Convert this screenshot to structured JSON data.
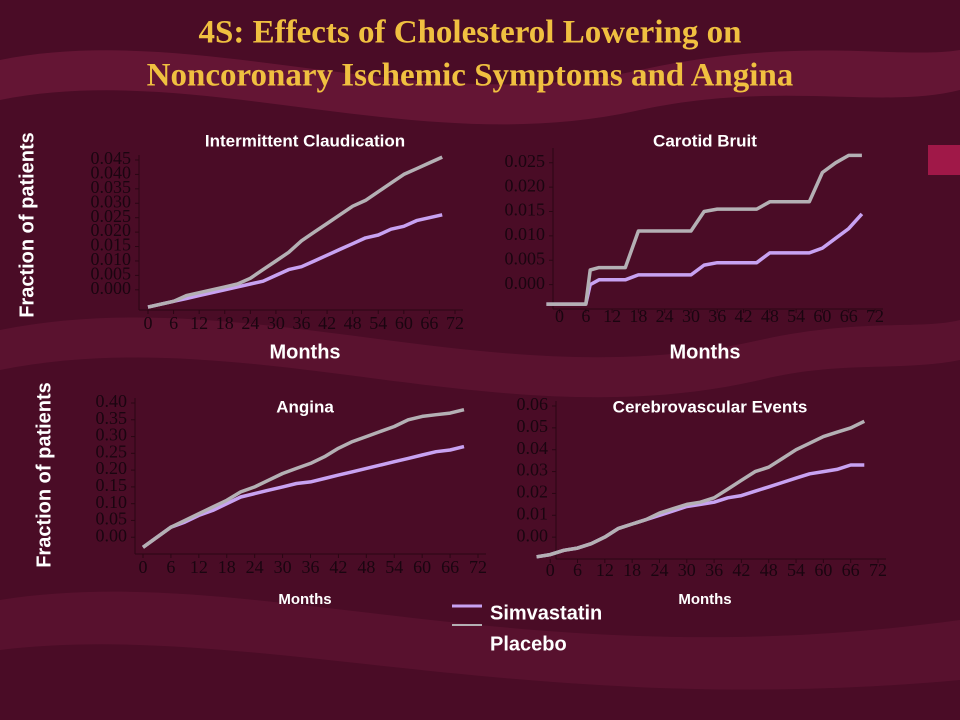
{
  "title": [
    "4S: Effects of Cholesterol Lowering on",
    "Noncoronary Ischemic Symptoms and Angina"
  ],
  "chart_data": [
    {
      "type": "line",
      "title": "Intermittent Claudication",
      "xlabel": "Months",
      "ylabel": "Fraction of patients",
      "x": [
        0,
        3,
        6,
        9,
        12,
        15,
        18,
        21,
        24,
        27,
        30,
        33,
        36,
        39,
        42,
        45,
        48,
        51,
        54,
        57,
        60,
        63,
        66,
        69
      ],
      "series": [
        {
          "name": "Simvastatin",
          "color": "#c8a2f2",
          "values": [
            -0.006,
            -0.005,
            -0.004,
            -0.003,
            -0.002,
            -0.001,
            0.0,
            0.001,
            0.002,
            0.003,
            0.005,
            0.007,
            0.008,
            0.01,
            0.012,
            0.014,
            0.016,
            0.018,
            0.019,
            0.021,
            0.022,
            0.024,
            0.025,
            0.026
          ]
        },
        {
          "name": "Placebo",
          "color": "#b4b0b4",
          "values": [
            -0.006,
            -0.005,
            -0.004,
            -0.002,
            -0.001,
            0.0,
            0.001,
            0.002,
            0.004,
            0.007,
            0.01,
            0.013,
            0.017,
            0.02,
            0.023,
            0.026,
            0.029,
            0.031,
            0.034,
            0.037,
            0.04,
            0.042,
            0.044,
            0.046
          ]
        }
      ],
      "xlim": [
        0,
        72
      ],
      "xticks": [
        0,
        6,
        12,
        18,
        24,
        30,
        36,
        42,
        48,
        54,
        60,
        66,
        72
      ],
      "ylim": [
        -0.007,
        0.045
      ],
      "yticks": [
        {
          "value": 0,
          "label": "0.000"
        },
        {
          "value": 0.005,
          "label": "0.005"
        },
        {
          "value": 0.01,
          "label": "0.010"
        },
        {
          "value": 0.015,
          "label": "0.015"
        },
        {
          "value": 0.02,
          "label": "0.020"
        },
        {
          "value": 0.025,
          "label": "0.025"
        },
        {
          "value": 0.03,
          "label": "0.030"
        },
        {
          "value": 0.035,
          "label": "0.035"
        },
        {
          "value": 0.04,
          "label": "0.040"
        },
        {
          "value": 0.045,
          "label": "0.045"
        }
      ]
    },
    {
      "type": "line",
      "title": "Carotid Bruit",
      "xlabel": "Months",
      "x": [
        -3,
        0,
        3,
        6,
        7,
        9,
        12,
        15,
        18,
        21,
        24,
        27,
        30,
        33,
        36,
        39,
        42,
        45,
        48,
        51,
        54,
        57,
        60,
        63,
        66,
        69
      ],
      "series": [
        {
          "color": "#c8a2f2",
          "values": [
            -0.004,
            -0.004,
            -0.004,
            -0.004,
            0.0,
            0.001,
            0.001,
            0.001,
            0.002,
            0.002,
            0.002,
            0.002,
            0.002,
            0.004,
            0.0045,
            0.0045,
            0.0045,
            0.0045,
            0.0065,
            0.0065,
            0.0065,
            0.0065,
            0.0075,
            0.0095,
            0.0115,
            0.0145
          ]
        },
        {
          "color": "#b4b0b4",
          "values": [
            -0.004,
            -0.004,
            -0.004,
            -0.004,
            0.003,
            0.0035,
            0.0035,
            0.0035,
            0.011,
            0.011,
            0.011,
            0.011,
            0.011,
            0.015,
            0.0155,
            0.0155,
            0.0155,
            0.0155,
            0.017,
            0.017,
            0.017,
            0.017,
            0.023,
            0.025,
            0.0265,
            0.0265
          ]
        }
      ],
      "xlim": [
        -4,
        72
      ],
      "xticks": [
        0,
        6,
        12,
        18,
        24,
        30,
        36,
        42,
        48,
        54,
        60,
        66,
        72
      ],
      "ylim": [
        -0.005,
        0.027
      ],
      "yticks": [
        {
          "value": 0,
          "label": "0.000"
        },
        {
          "value": 0.005,
          "label": "0.005"
        },
        {
          "value": 0.01,
          "label": "0.010"
        },
        {
          "value": 0.015,
          "label": "0.015"
        },
        {
          "value": 0.02,
          "label": "0.020"
        },
        {
          "value": 0.025,
          "label": "0.025"
        }
      ]
    },
    {
      "type": "line",
      "title": "Angina",
      "xlabel": "Months",
      "ylabel": "Fraction of patients",
      "x": [
        0,
        3,
        6,
        9,
        12,
        15,
        18,
        21,
        24,
        27,
        30,
        33,
        36,
        39,
        42,
        45,
        48,
        51,
        54,
        57,
        60,
        63,
        66,
        69
      ],
      "series": [
        {
          "color": "#c8a2f2",
          "values": [
            -0.03,
            0,
            0.03,
            0.045,
            0.065,
            0.08,
            0.1,
            0.12,
            0.13,
            0.14,
            0.15,
            0.16,
            0.165,
            0.175,
            0.185,
            0.195,
            0.205,
            0.215,
            0.225,
            0.235,
            0.245,
            0.255,
            0.26,
            0.27
          ]
        },
        {
          "color": "#b4b0b4",
          "values": [
            -0.03,
            0,
            0.03,
            0.05,
            0.07,
            0.09,
            0.11,
            0.135,
            0.15,
            0.17,
            0.19,
            0.205,
            0.22,
            0.24,
            0.265,
            0.285,
            0.3,
            0.315,
            0.33,
            0.35,
            0.36,
            0.365,
            0.37,
            0.38
          ]
        }
      ],
      "xlim": [
        0,
        72
      ],
      "xticks": [
        0,
        6,
        12,
        18,
        24,
        30,
        36,
        42,
        48,
        54,
        60,
        66,
        72
      ],
      "ylim": [
        -0.05,
        0.4
      ],
      "yticks": [
        {
          "value": 0,
          "label": "0.00"
        },
        {
          "value": 0.05,
          "label": "0.05"
        },
        {
          "value": 0.1,
          "label": "0.10"
        },
        {
          "value": 0.15,
          "label": "0.15"
        },
        {
          "value": 0.2,
          "label": "0.20"
        },
        {
          "value": 0.25,
          "label": "0.25"
        },
        {
          "value": 0.3,
          "label": "0.30"
        },
        {
          "value": 0.35,
          "label": "0.35"
        },
        {
          "value": 0.4,
          "label": "0.40"
        }
      ]
    },
    {
      "type": "line",
      "title": "Cerebrovascular Events",
      "xlabel": "Months",
      "x": [
        -3,
        0,
        3,
        6,
        9,
        12,
        15,
        18,
        21,
        24,
        27,
        30,
        33,
        36,
        39,
        42,
        45,
        48,
        51,
        54,
        57,
        60,
        63,
        66,
        69
      ],
      "series": [
        {
          "color": "#c8a2f2",
          "values": [
            -0.009,
            -0.008,
            -0.006,
            -0.005,
            -0.003,
            0.0,
            0.004,
            0.006,
            0.008,
            0.01,
            0.012,
            0.014,
            0.015,
            0.016,
            0.018,
            0.019,
            0.021,
            0.023,
            0.025,
            0.027,
            0.029,
            0.03,
            0.031,
            0.033,
            0.033
          ]
        },
        {
          "color": "#b4b0b4",
          "values": [
            -0.009,
            -0.008,
            -0.006,
            -0.005,
            -0.003,
            0.0,
            0.004,
            0.006,
            0.008,
            0.011,
            0.013,
            0.015,
            0.016,
            0.018,
            0.022,
            0.026,
            0.03,
            0.032,
            0.036,
            0.04,
            0.043,
            0.046,
            0.048,
            0.05,
            0.053
          ]
        }
      ],
      "xlim": [
        -4,
        72
      ],
      "xticks": [
        0,
        6,
        12,
        18,
        24,
        30,
        36,
        42,
        48,
        54,
        60,
        66,
        72
      ],
      "ylim": [
        -0.01,
        0.06
      ],
      "yticks": [
        {
          "value": 0,
          "label": "0.00"
        },
        {
          "value": 0.01,
          "label": "0.01"
        },
        {
          "value": 0.02,
          "label": "0.02"
        },
        {
          "value": 0.03,
          "label": "0.03"
        },
        {
          "value": 0.04,
          "label": "0.04"
        },
        {
          "value": 0.05,
          "label": "0.05"
        },
        {
          "value": 0.06,
          "label": "0.06"
        }
      ]
    }
  ]
}
